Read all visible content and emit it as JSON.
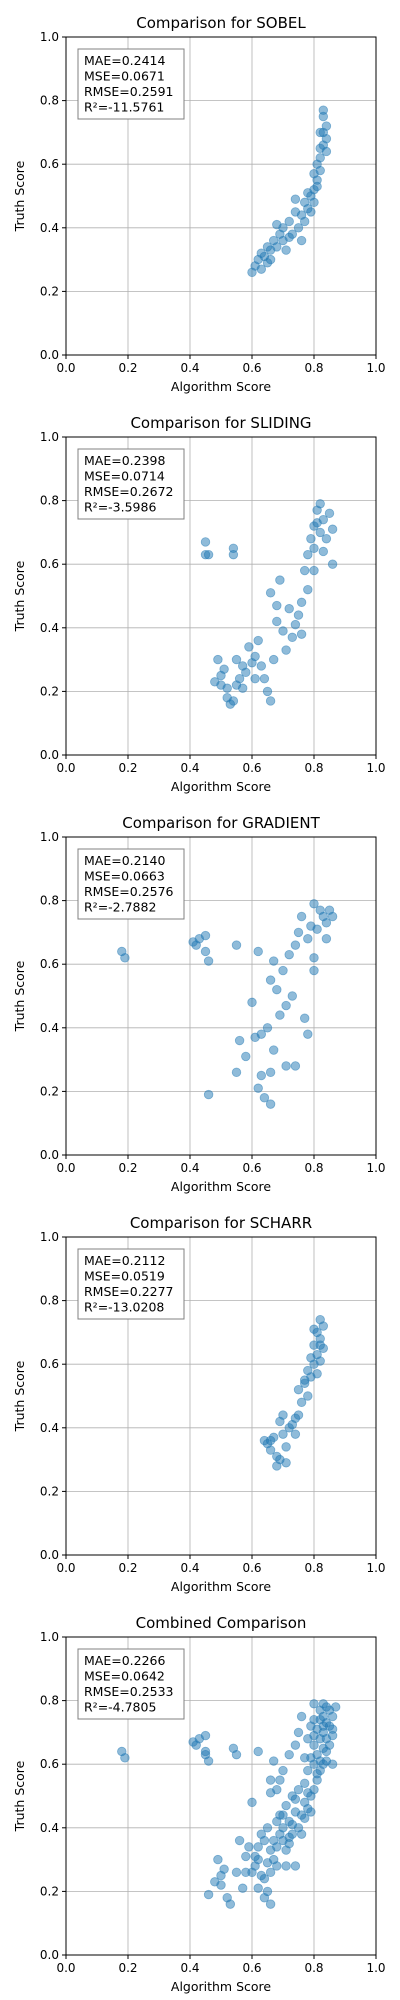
{
  "chart_data": [
    {
      "type": "scatter",
      "title": "Comparison for SOBEL",
      "xlabel": "Algorithm Score",
      "ylabel": "Truth Score",
      "xlim": [
        0,
        1
      ],
      "ylim": [
        0,
        1
      ],
      "xticks": [
        "0.0",
        "0.2",
        "0.4",
        "0.6",
        "0.8",
        "1.0"
      ],
      "yticks": [
        "0.0",
        "0.2",
        "0.4",
        "0.6",
        "0.8",
        "1.0"
      ],
      "grid": true,
      "color": "#1f77b4",
      "stats": [
        "MAE=0.2414",
        "MSE=0.0671",
        "RMSE=0.2591",
        "R²=-11.5761"
      ],
      "points": [
        [
          0.6,
          0.26
        ],
        [
          0.61,
          0.28
        ],
        [
          0.62,
          0.3
        ],
        [
          0.63,
          0.27
        ],
        [
          0.64,
          0.31
        ],
        [
          0.65,
          0.29
        ],
        [
          0.66,
          0.33
        ],
        [
          0.66,
          0.3
        ],
        [
          0.67,
          0.36
        ],
        [
          0.68,
          0.34
        ],
        [
          0.69,
          0.38
        ],
        [
          0.7,
          0.36
        ],
        [
          0.7,
          0.4
        ],
        [
          0.71,
          0.33
        ],
        [
          0.72,
          0.42
        ],
        [
          0.73,
          0.38
        ],
        [
          0.74,
          0.45
        ],
        [
          0.75,
          0.4
        ],
        [
          0.76,
          0.44
        ],
        [
          0.77,
          0.48
        ],
        [
          0.78,
          0.46
        ],
        [
          0.79,
          0.5
        ],
        [
          0.8,
          0.52
        ],
        [
          0.8,
          0.48
        ],
        [
          0.81,
          0.55
        ],
        [
          0.81,
          0.6
        ],
        [
          0.82,
          0.58
        ],
        [
          0.82,
          0.65
        ],
        [
          0.83,
          0.7
        ],
        [
          0.83,
          0.75
        ],
        [
          0.84,
          0.68
        ],
        [
          0.84,
          0.72
        ],
        [
          0.82,
          0.62
        ],
        [
          0.83,
          0.66
        ],
        [
          0.81,
          0.53
        ],
        [
          0.79,
          0.45
        ],
        [
          0.76,
          0.36
        ],
        [
          0.68,
          0.41
        ],
        [
          0.74,
          0.49
        ],
        [
          0.78,
          0.51
        ],
        [
          0.83,
          0.77
        ],
        [
          0.84,
          0.64
        ],
        [
          0.8,
          0.57
        ],
        [
          0.65,
          0.34
        ],
        [
          0.63,
          0.32
        ],
        [
          0.72,
          0.37
        ],
        [
          0.77,
          0.42
        ],
        [
          0.82,
          0.7
        ]
      ]
    },
    {
      "type": "scatter",
      "title": "Comparison for SLIDING",
      "xlabel": "Algorithm Score",
      "ylabel": "Truth Score",
      "xlim": [
        0,
        1
      ],
      "ylim": [
        0,
        1
      ],
      "xticks": [
        "0.0",
        "0.2",
        "0.4",
        "0.6",
        "0.8",
        "1.0"
      ],
      "yticks": [
        "0.0",
        "0.2",
        "0.4",
        "0.6",
        "0.8",
        "1.0"
      ],
      "grid": true,
      "color": "#1f77b4",
      "stats": [
        "MAE=0.2398",
        "MSE=0.0714",
        "RMSE=0.2672",
        "R²=-3.5986"
      ],
      "points": [
        [
          0.45,
          0.67
        ],
        [
          0.45,
          0.63
        ],
        [
          0.46,
          0.63
        ],
        [
          0.54,
          0.65
        ],
        [
          0.54,
          0.63
        ],
        [
          0.49,
          0.3
        ],
        [
          0.5,
          0.25
        ],
        [
          0.5,
          0.22
        ],
        [
          0.51,
          0.27
        ],
        [
          0.52,
          0.18
        ],
        [
          0.53,
          0.16
        ],
        [
          0.54,
          0.17
        ],
        [
          0.55,
          0.22
        ],
        [
          0.56,
          0.24
        ],
        [
          0.57,
          0.21
        ],
        [
          0.58,
          0.26
        ],
        [
          0.59,
          0.34
        ],
        [
          0.6,
          0.29
        ],
        [
          0.61,
          0.31
        ],
        [
          0.62,
          0.36
        ],
        [
          0.63,
          0.28
        ],
        [
          0.64,
          0.24
        ],
        [
          0.65,
          0.2
        ],
        [
          0.66,
          0.17
        ],
        [
          0.66,
          0.51
        ],
        [
          0.67,
          0.3
        ],
        [
          0.68,
          0.42
        ],
        [
          0.69,
          0.55
        ],
        [
          0.7,
          0.39
        ],
        [
          0.71,
          0.33
        ],
        [
          0.72,
          0.46
        ],
        [
          0.73,
          0.37
        ],
        [
          0.74,
          0.41
        ],
        [
          0.75,
          0.44
        ],
        [
          0.76,
          0.48
        ],
        [
          0.77,
          0.58
        ],
        [
          0.78,
          0.63
        ],
        [
          0.79,
          0.68
        ],
        [
          0.8,
          0.65
        ],
        [
          0.8,
          0.72
        ],
        [
          0.81,
          0.77
        ],
        [
          0.82,
          0.7
        ],
        [
          0.82,
          0.79
        ],
        [
          0.83,
          0.74
        ],
        [
          0.84,
          0.68
        ],
        [
          0.85,
          0.76
        ],
        [
          0.86,
          0.71
        ],
        [
          0.86,
          0.6
        ],
        [
          0.8,
          0.58
        ],
        [
          0.76,
          0.38
        ],
        [
          0.78,
          0.52
        ],
        [
          0.57,
          0.28
        ],
        [
          0.52,
          0.21
        ],
        [
          0.48,
          0.23
        ],
        [
          0.55,
          0.3
        ],
        [
          0.61,
          0.24
        ],
        [
          0.68,
          0.47
        ],
        [
          0.83,
          0.64
        ],
        [
          0.81,
          0.73
        ]
      ]
    },
    {
      "type": "scatter",
      "title": "Comparison for GRADIENT",
      "xlabel": "Algorithm Score",
      "ylabel": "Truth Score",
      "xlim": [
        0,
        1
      ],
      "ylim": [
        0,
        1
      ],
      "xticks": [
        "0.0",
        "0.2",
        "0.4",
        "0.6",
        "0.8",
        "1.0"
      ],
      "yticks": [
        "0.0",
        "0.2",
        "0.4",
        "0.6",
        "0.8",
        "1.0"
      ],
      "grid": true,
      "color": "#1f77b4",
      "stats": [
        "MAE=0.2140",
        "MSE=0.0663",
        "RMSE=0.2576",
        "R²=-2.7882"
      ],
      "points": [
        [
          0.18,
          0.64
        ],
        [
          0.19,
          0.62
        ],
        [
          0.41,
          0.67
        ],
        [
          0.42,
          0.66
        ],
        [
          0.43,
          0.68
        ],
        [
          0.45,
          0.69
        ],
        [
          0.45,
          0.64
        ],
        [
          0.46,
          0.61
        ],
        [
          0.46,
          0.19
        ],
        [
          0.55,
          0.66
        ],
        [
          0.55,
          0.26
        ],
        [
          0.56,
          0.36
        ],
        [
          0.58,
          0.31
        ],
        [
          0.6,
          0.48
        ],
        [
          0.61,
          0.37
        ],
        [
          0.62,
          0.21
        ],
        [
          0.62,
          0.64
        ],
        [
          0.63,
          0.25
        ],
        [
          0.64,
          0.18
        ],
        [
          0.65,
          0.4
        ],
        [
          0.66,
          0.55
        ],
        [
          0.66,
          0.26
        ],
        [
          0.67,
          0.33
        ],
        [
          0.67,
          0.61
        ],
        [
          0.68,
          0.52
        ],
        [
          0.69,
          0.44
        ],
        [
          0.7,
          0.58
        ],
        [
          0.71,
          0.28
        ],
        [
          0.72,
          0.63
        ],
        [
          0.73,
          0.5
        ],
        [
          0.74,
          0.66
        ],
        [
          0.75,
          0.7
        ],
        [
          0.76,
          0.75
        ],
        [
          0.77,
          0.43
        ],
        [
          0.78,
          0.38
        ],
        [
          0.78,
          0.68
        ],
        [
          0.79,
          0.72
        ],
        [
          0.8,
          0.79
        ],
        [
          0.81,
          0.71
        ],
        [
          0.82,
          0.77
        ],
        [
          0.83,
          0.75
        ],
        [
          0.84,
          0.73
        ],
        [
          0.85,
          0.77
        ],
        [
          0.86,
          0.75
        ],
        [
          0.84,
          0.68
        ],
        [
          0.8,
          0.62
        ],
        [
          0.66,
          0.16
        ],
        [
          0.74,
          0.28
        ],
        [
          0.71,
          0.47
        ],
        [
          0.63,
          0.38
        ],
        [
          0.8,
          0.58
        ]
      ]
    },
    {
      "type": "scatter",
      "title": "Comparison for SCHARR",
      "xlabel": "Algorithm Score",
      "ylabel": "Truth Score",
      "xlim": [
        0,
        1
      ],
      "ylim": [
        0,
        1
      ],
      "xticks": [
        "0.0",
        "0.2",
        "0.4",
        "0.6",
        "0.8",
        "1.0"
      ],
      "yticks": [
        "0.0",
        "0.2",
        "0.4",
        "0.6",
        "0.8",
        "1.0"
      ],
      "grid": true,
      "color": "#1f77b4",
      "stats": [
        "MAE=0.2112",
        "MSE=0.0519",
        "RMSE=0.2277",
        "R²=-13.0208"
      ],
      "points": [
        [
          0.64,
          0.36
        ],
        [
          0.65,
          0.35
        ],
        [
          0.66,
          0.33
        ],
        [
          0.67,
          0.37
        ],
        [
          0.68,
          0.31
        ],
        [
          0.68,
          0.28
        ],
        [
          0.69,
          0.3
        ],
        [
          0.69,
          0.42
        ],
        [
          0.7,
          0.38
        ],
        [
          0.7,
          0.44
        ],
        [
          0.71,
          0.34
        ],
        [
          0.72,
          0.4
        ],
        [
          0.73,
          0.41
        ],
        [
          0.74,
          0.38
        ],
        [
          0.75,
          0.44
        ],
        [
          0.75,
          0.52
        ],
        [
          0.76,
          0.48
        ],
        [
          0.77,
          0.54
        ],
        [
          0.78,
          0.5
        ],
        [
          0.78,
          0.58
        ],
        [
          0.79,
          0.56
        ],
        [
          0.8,
          0.6
        ],
        [
          0.8,
          0.66
        ],
        [
          0.81,
          0.63
        ],
        [
          0.81,
          0.7
        ],
        [
          0.82,
          0.74
        ],
        [
          0.82,
          0.68
        ],
        [
          0.83,
          0.72
        ],
        [
          0.83,
          0.65
        ],
        [
          0.82,
          0.61
        ],
        [
          0.79,
          0.62
        ],
        [
          0.8,
          0.71
        ],
        [
          0.71,
          0.29
        ],
        [
          0.74,
          0.43
        ],
        [
          0.66,
          0.36
        ],
        [
          0.77,
          0.55
        ],
        [
          0.81,
          0.57
        ],
        [
          0.82,
          0.66
        ]
      ]
    },
    {
      "type": "scatter",
      "title": "Combined Comparison",
      "xlabel": "Algorithm Score",
      "ylabel": "Truth Score",
      "xlim": [
        0,
        1
      ],
      "ylim": [
        0,
        1
      ],
      "xticks": [
        "0.0",
        "0.2",
        "0.4",
        "0.6",
        "0.8",
        "1.0"
      ],
      "yticks": [
        "0.0",
        "0.2",
        "0.4",
        "0.6",
        "0.8",
        "1.0"
      ],
      "grid": true,
      "color": "#1f77b4",
      "stats": [
        "MAE=0.2266",
        "MSE=0.0642",
        "RMSE=0.2533",
        "R²=-4.7805"
      ],
      "points": [
        [
          0.18,
          0.64
        ],
        [
          0.19,
          0.62
        ],
        [
          0.41,
          0.67
        ],
        [
          0.42,
          0.66
        ],
        [
          0.43,
          0.68
        ],
        [
          0.45,
          0.69
        ],
        [
          0.45,
          0.64
        ],
        [
          0.46,
          0.61
        ],
        [
          0.46,
          0.19
        ],
        [
          0.54,
          0.65
        ],
        [
          0.55,
          0.63
        ],
        [
          0.55,
          0.26
        ],
        [
          0.49,
          0.3
        ],
        [
          0.5,
          0.25
        ],
        [
          0.5,
          0.22
        ],
        [
          0.52,
          0.18
        ],
        [
          0.53,
          0.16
        ],
        [
          0.56,
          0.36
        ],
        [
          0.58,
          0.31
        ],
        [
          0.6,
          0.48
        ],
        [
          0.6,
          0.26
        ],
        [
          0.61,
          0.28
        ],
        [
          0.62,
          0.3
        ],
        [
          0.62,
          0.21
        ],
        [
          0.62,
          0.64
        ],
        [
          0.63,
          0.25
        ],
        [
          0.64,
          0.18
        ],
        [
          0.64,
          0.36
        ],
        [
          0.65,
          0.4
        ],
        [
          0.65,
          0.29
        ],
        [
          0.66,
          0.55
        ],
        [
          0.66,
          0.33
        ],
        [
          0.66,
          0.16
        ],
        [
          0.67,
          0.36
        ],
        [
          0.67,
          0.61
        ],
        [
          0.68,
          0.34
        ],
        [
          0.68,
          0.52
        ],
        [
          0.68,
          0.28
        ],
        [
          0.69,
          0.38
        ],
        [
          0.69,
          0.44
        ],
        [
          0.7,
          0.36
        ],
        [
          0.7,
          0.4
        ],
        [
          0.7,
          0.58
        ],
        [
          0.71,
          0.33
        ],
        [
          0.71,
          0.47
        ],
        [
          0.72,
          0.42
        ],
        [
          0.72,
          0.63
        ],
        [
          0.73,
          0.38
        ],
        [
          0.73,
          0.5
        ],
        [
          0.74,
          0.45
        ],
        [
          0.74,
          0.66
        ],
        [
          0.75,
          0.4
        ],
        [
          0.75,
          0.7
        ],
        [
          0.76,
          0.44
        ],
        [
          0.76,
          0.75
        ],
        [
          0.77,
          0.48
        ],
        [
          0.77,
          0.43
        ],
        [
          0.78,
          0.46
        ],
        [
          0.78,
          0.58
        ],
        [
          0.78,
          0.68
        ],
        [
          0.79,
          0.5
        ],
        [
          0.79,
          0.72
        ],
        [
          0.8,
          0.52
        ],
        [
          0.8,
          0.6
        ],
        [
          0.8,
          0.79
        ],
        [
          0.8,
          0.66
        ],
        [
          0.81,
          0.55
        ],
        [
          0.81,
          0.71
        ],
        [
          0.81,
          0.63
        ],
        [
          0.82,
          0.58
        ],
        [
          0.82,
          0.77
        ],
        [
          0.82,
          0.74
        ],
        [
          0.82,
          0.68
        ],
        [
          0.83,
          0.7
        ],
        [
          0.83,
          0.75
        ],
        [
          0.83,
          0.65
        ],
        [
          0.84,
          0.68
        ],
        [
          0.84,
          0.73
        ],
        [
          0.84,
          0.64
        ],
        [
          0.85,
          0.77
        ],
        [
          0.85,
          0.72
        ],
        [
          0.86,
          0.75
        ],
        [
          0.86,
          0.71
        ],
        [
          0.86,
          0.6
        ],
        [
          0.87,
          0.78
        ],
        [
          0.57,
          0.21
        ],
        [
          0.59,
          0.34
        ],
        [
          0.63,
          0.38
        ],
        [
          0.66,
          0.26
        ],
        [
          0.67,
          0.3
        ],
        [
          0.69,
          0.55
        ],
        [
          0.71,
          0.28
        ],
        [
          0.72,
          0.37
        ],
        [
          0.74,
          0.28
        ],
        [
          0.76,
          0.38
        ],
        [
          0.77,
          0.54
        ],
        [
          0.79,
          0.62
        ],
        [
          0.83,
          0.79
        ],
        [
          0.84,
          0.61
        ],
        [
          0.48,
          0.23
        ],
        [
          0.51,
          0.27
        ],
        [
          0.45,
          0.63
        ],
        [
          0.58,
          0.26
        ],
        [
          0.61,
          0.31
        ],
        [
          0.64,
          0.24
        ],
        [
          0.65,
          0.2
        ],
        [
          0.68,
          0.42
        ],
        [
          0.7,
          0.44
        ],
        [
          0.73,
          0.41
        ],
        [
          0.75,
          0.52
        ],
        [
          0.78,
          0.51
        ],
        [
          0.81,
          0.57
        ],
        [
          0.82,
          0.61
        ],
        [
          0.84,
          0.78
        ],
        [
          0.85,
          0.66
        ],
        [
          0.8,
          0.74
        ],
        [
          0.83,
          0.6
        ],
        [
          0.79,
          0.45
        ],
        [
          0.72,
          0.35
        ],
        [
          0.66,
          0.51
        ],
        [
          0.62,
          0.34
        ],
        [
          0.74,
          0.49
        ],
        [
          0.77,
          0.62
        ],
        [
          0.8,
          0.69
        ],
        [
          0.86,
          0.69
        ],
        [
          0.83,
          0.72
        ]
      ]
    }
  ]
}
